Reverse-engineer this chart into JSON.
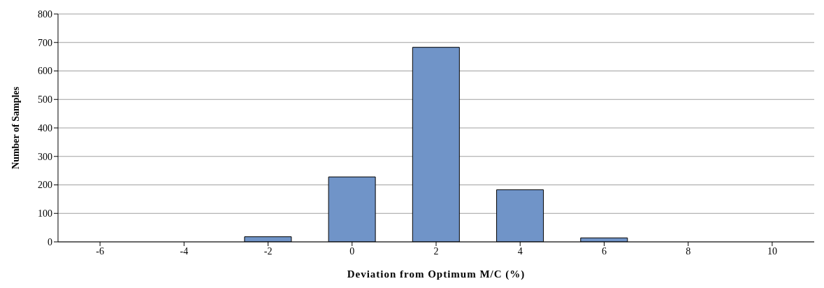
{
  "chart_data": {
    "type": "bar",
    "xlabel": "Deviation from Optimum M/C (%)",
    "ylabel": "Number of Samples",
    "categories": [
      "-6",
      "-4",
      "-2",
      "0",
      "2",
      "4",
      "6",
      "8",
      "10"
    ],
    "values": [
      0,
      0,
      18,
      228,
      683,
      183,
      14,
      0,
      0
    ],
    "color": "#7094c8",
    "ylim": [
      0,
      800
    ],
    "yticks": [
      0,
      100,
      200,
      300,
      400,
      500,
      600,
      700,
      800
    ],
    "grid": "y"
  }
}
